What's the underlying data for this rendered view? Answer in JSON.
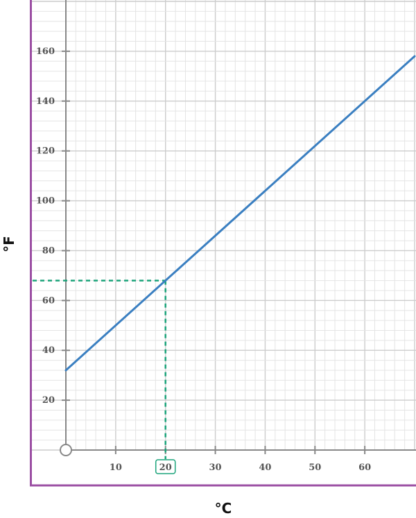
{
  "chart_data": {
    "type": "line",
    "title": "",
    "xlabel": "°C",
    "ylabel": "°F",
    "xlim": [
      0,
      70
    ],
    "ylim": [
      0,
      180
    ],
    "x_ticks": [
      10,
      20,
      30,
      40,
      50,
      60
    ],
    "y_ticks": [
      20,
      40,
      60,
      80,
      100,
      120,
      140,
      160
    ],
    "grid": true,
    "series": [
      {
        "x": [
          0,
          70
        ],
        "y": [
          32,
          158
        ]
      }
    ],
    "annotation": {
      "x": 20,
      "y": 68,
      "highlight_tick": "20"
    },
    "colors": {
      "line": "#3a7fc1",
      "annotation": "#1aa37a",
      "frame": "#9b4fa3",
      "grid_minor": "#e4e4e4",
      "grid_major": "#cccccc",
      "axis": "#888888"
    }
  }
}
